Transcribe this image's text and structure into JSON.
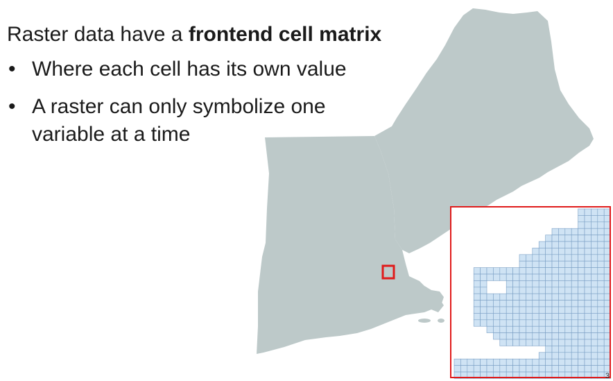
{
  "slide": {
    "heading_prefix": "Raster data have a ",
    "heading_bold": "frontend cell matrix",
    "bullets": [
      {
        "marker": "•",
        "lines": [
          "Where each cell has its own value"
        ]
      },
      {
        "marker": "•",
        "lines": [
          "A raster can only symbolize one",
          "variable at a time"
        ]
      }
    ],
    "page_number": "3"
  },
  "colors": {
    "land": "#bdc9c9",
    "highlight": "#e01a1a",
    "cell_fill": "#cfe3f4",
    "cell_stroke": "#7a9fc4"
  }
}
